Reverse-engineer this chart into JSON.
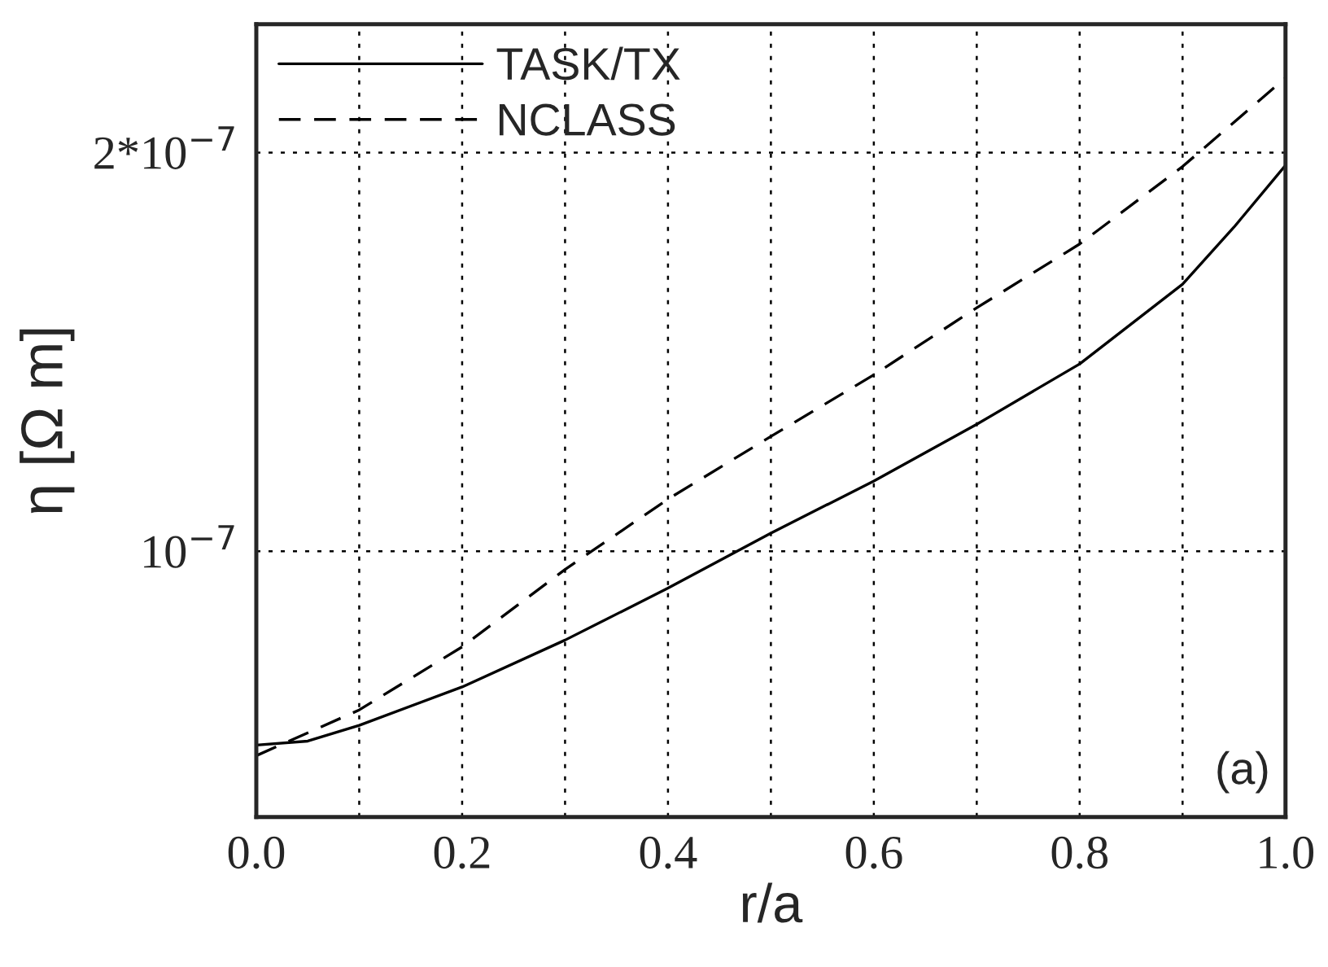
{
  "chart_data": {
    "type": "line",
    "xlabel": "r/a",
    "ylabel": "η [Ω m]",
    "log": "y",
    "grid": true,
    "legend": "top left",
    "xlim": [
      0.0,
      1.0
    ],
    "ylim": [
      6.3e-08,
      2.5e-07
    ],
    "xticks": [
      {
        "value": 0.0,
        "label": "0.0"
      },
      {
        "value": 0.1,
        "label": null
      },
      {
        "value": 0.2,
        "label": "0.2"
      },
      {
        "value": 0.3,
        "label": null
      },
      {
        "value": 0.4,
        "label": "0.4"
      },
      {
        "value": 0.5,
        "label": null
      },
      {
        "value": 0.6,
        "label": "0.6"
      },
      {
        "value": 0.7,
        "label": null
      },
      {
        "value": 0.8,
        "label": "0.8"
      },
      {
        "value": 0.9,
        "label": null
      },
      {
        "value": 1.0,
        "label": "1.0"
      }
    ],
    "yticks": [
      {
        "value": 1e-07,
        "label": "10$^{−7}$"
      },
      {
        "value": 2e-07,
        "label": "2*10$^{−7}$"
      }
    ],
    "annotations": [
      "(a)"
    ],
    "series": [
      {
        "name": "TASK/TX",
        "color": "#000000",
        "line_style": "solid",
        "x": [
          0.0,
          0.05,
          0.1,
          0.2,
          0.3,
          0.4,
          0.5,
          0.6,
          0.7,
          0.8,
          0.9,
          0.95,
          1.0
        ],
        "values": [
          7.14e-08,
          7.19e-08,
          7.39e-08,
          7.9e-08,
          8.57e-08,
          9.38e-08,
          1.032e-07,
          1.13e-07,
          1.247e-07,
          1.385e-07,
          1.591e-07,
          1.757e-07,
          1.956e-07
        ]
      },
      {
        "name": "NCLASS",
        "color": "#000000",
        "line_style": "dashed",
        "x": [
          0.0,
          0.1,
          0.2,
          0.3,
          0.4,
          0.5,
          0.6,
          0.7,
          0.8,
          0.9,
          1.0
        ],
        "values": [
          7.01e-08,
          7.59e-08,
          8.47e-08,
          9.69e-08,
          1.095e-07,
          1.221e-07,
          1.359e-07,
          1.527e-07,
          1.706e-07,
          1.952e-07,
          2.277e-07
        ]
      }
    ]
  }
}
